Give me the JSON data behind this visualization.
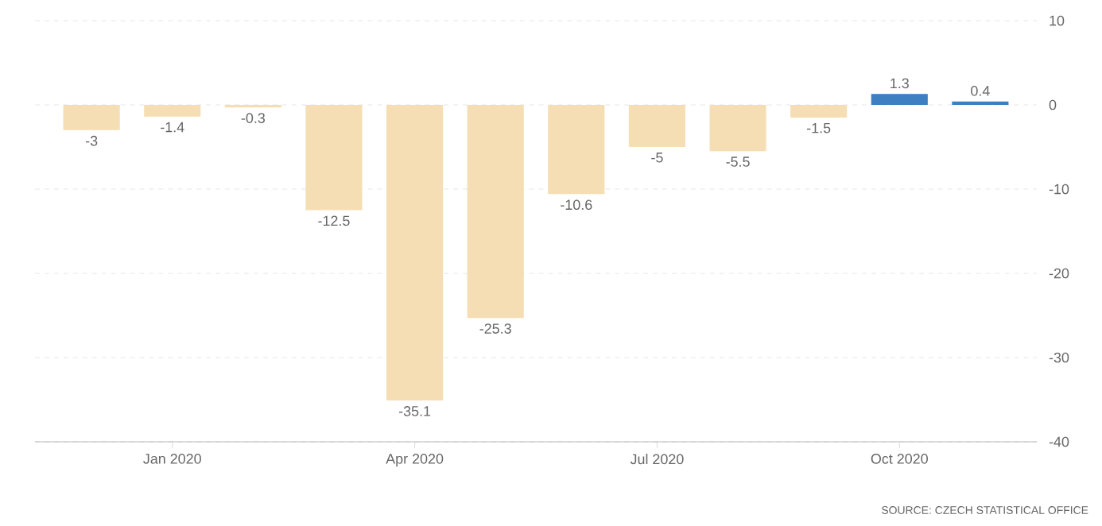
{
  "chart_data": {
    "type": "bar",
    "categories": [
      null,
      "Jan 2020",
      null,
      null,
      "Apr 2020",
      null,
      null,
      "Jul 2020",
      null,
      null,
      "Oct 2020",
      null
    ],
    "values": [
      -3,
      -1.4,
      -0.3,
      -12.5,
      -35.1,
      -25.3,
      -10.6,
      -5,
      -5.5,
      -1.5,
      1.3,
      0.4
    ],
    "colors": [
      "#f5deb4",
      "#f5deb4",
      "#f5deb4",
      "#f5deb4",
      "#f5deb4",
      "#f5deb4",
      "#f5deb4",
      "#f5deb4",
      "#f5deb4",
      "#f5deb4",
      "#3d7fc1",
      "#3d7fc1"
    ],
    "ylim": [
      -40,
      10
    ],
    "yticks": [
      10,
      0,
      -10,
      -20,
      -30,
      -40
    ],
    "grid": "y",
    "data_labels": true,
    "annotations": [
      "SOURCE: CZECH STATISTICAL OFFICE"
    ]
  }
}
